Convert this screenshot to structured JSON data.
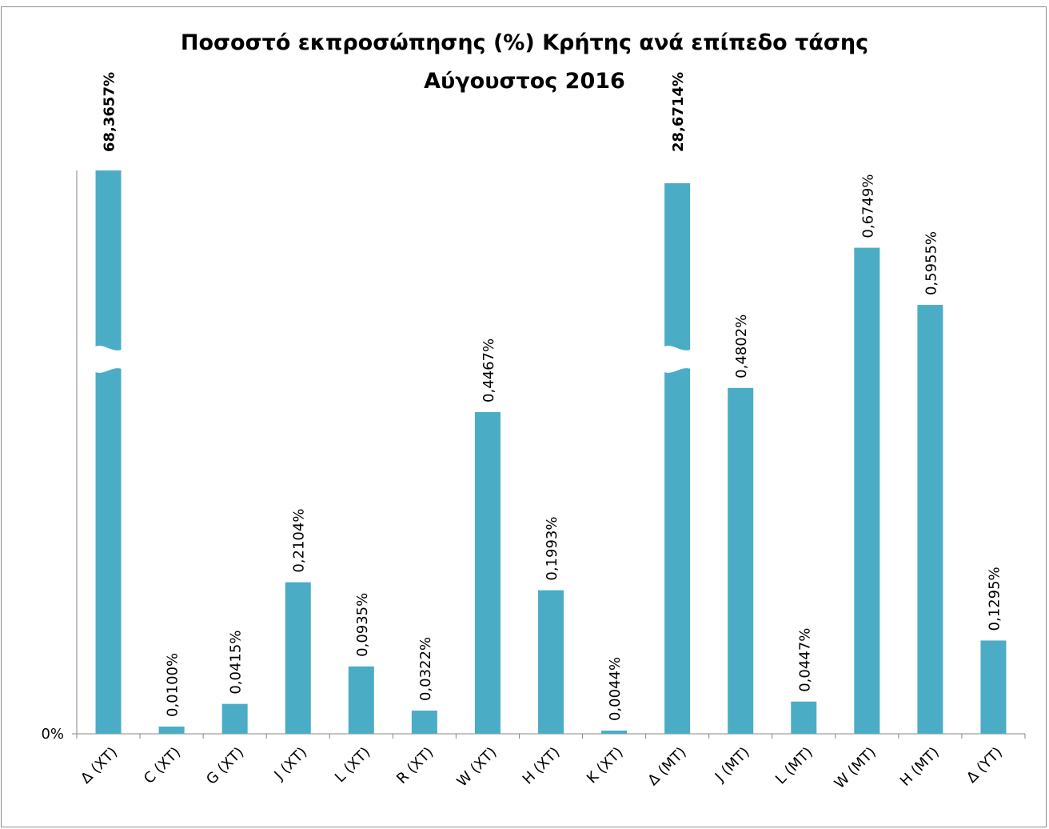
{
  "chart_data": {
    "type": "bar",
    "title": "Ποσοστό εκπροσώπησης (%) Κρήτης ανά επίπεδο τάσης",
    "subtitle": "Αύγουστος 2016",
    "xlabel": "",
    "ylabel": "",
    "y_tick_labels": [
      "0%"
    ],
    "ylim": [
      0,
      0.78
    ],
    "axis_break": true,
    "grid": false,
    "legend": "none",
    "bar_color": "#4BACC6",
    "categories": [
      "Δ (ΧΤ)",
      "C (ΧΤ)",
      "G (ΧΤ)",
      "J (ΧΤ)",
      "L (ΧΤ)",
      "R (ΧΤ)",
      "W (ΧΤ)",
      "H (ΧΤ)",
      "K (ΧΤ)",
      "Δ (ΜΤ)",
      "J (ΜΤ)",
      "L (ΜΤ)",
      "W (ΜΤ)",
      "H (ΜΤ)",
      "Δ (ΥΤ)"
    ],
    "values": [
      68.3657,
      0.01,
      0.0415,
      0.2104,
      0.0935,
      0.0322,
      0.4467,
      0.1993,
      0.0044,
      28.6714,
      0.4802,
      0.0447,
      0.6749,
      0.5955,
      0.1295
    ],
    "data_labels": [
      "68,3657%",
      "0,0100%",
      "0,0415%",
      "0,2104%",
      "0,0935%",
      "0,0322%",
      "0,4467%",
      "0,1993%",
      "0,0044%",
      "28,6714%",
      "0,4802%",
      "0,0447%",
      "0,6749%",
      "0,5955%",
      "0,1295%"
    ],
    "broken_bars": [
      0,
      9
    ]
  }
}
